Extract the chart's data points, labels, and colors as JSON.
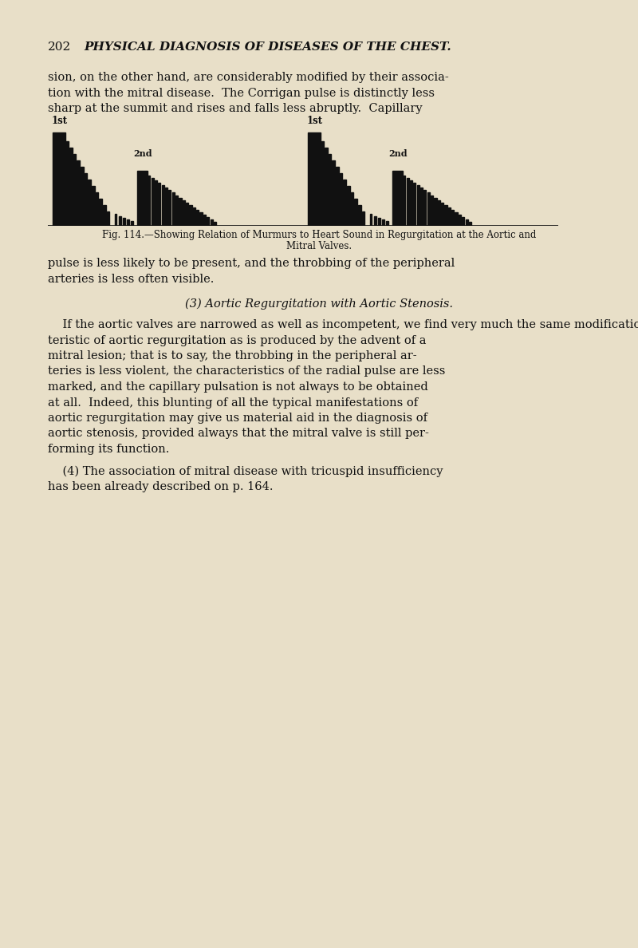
{
  "bg_color": "#e8dfc8",
  "bar_color": "#111111",
  "fig_width": 8.0,
  "fig_height": 11.88,
  "header_num": "202",
  "header_title": "PHYSICAL DIAGNOSIS OF DISEASES OF THE CHEST.",
  "para1_lines": [
    "sion, on the other hand, are considerably modified by their associa-",
    "tion with the mitral disease.  The Corrigan pulse is distinctly less",
    "sharp at the summit and rises and falls less abruptly.  Capillary"
  ],
  "caption_line1": "Fig. 114.—Showing Relation of Murmurs to Heart Sound in Regurgitation at the Aortic and",
  "caption_line2": "Mitral Valves.",
  "para2_lines": [
    "pulse is less likely to be present, and the throbbing of the peripheral",
    "arteries is less often visible."
  ],
  "para3_title": "(3) Aortic Regurgitation with Aortic Stenosis.",
  "para3_lines": [
    "    If the aortic valves are narrowed as well as incompetent, we find very much the same modification of the physical signs charac-",
    "teristic of aortic regurgitation as is produced by the advent of a",
    "mitral lesion; that is to say, the throbbing in the peripheral ar-",
    "teries is less violent, the characteristics of the radial pulse are less",
    "marked, and the capillary pulsation is not always to be obtained",
    "at all.  Indeed, this blunting of all the typical manifestations of",
    "aortic regurgitation may give us material aid in the diagnosis of",
    "aortic stenosis, provided always that the mitral valve is still per-",
    "forming its function."
  ],
  "para4_lines": [
    "    (4) The association of mitral disease with tricuspid insufficiency",
    "has been already described on p. 164."
  ]
}
